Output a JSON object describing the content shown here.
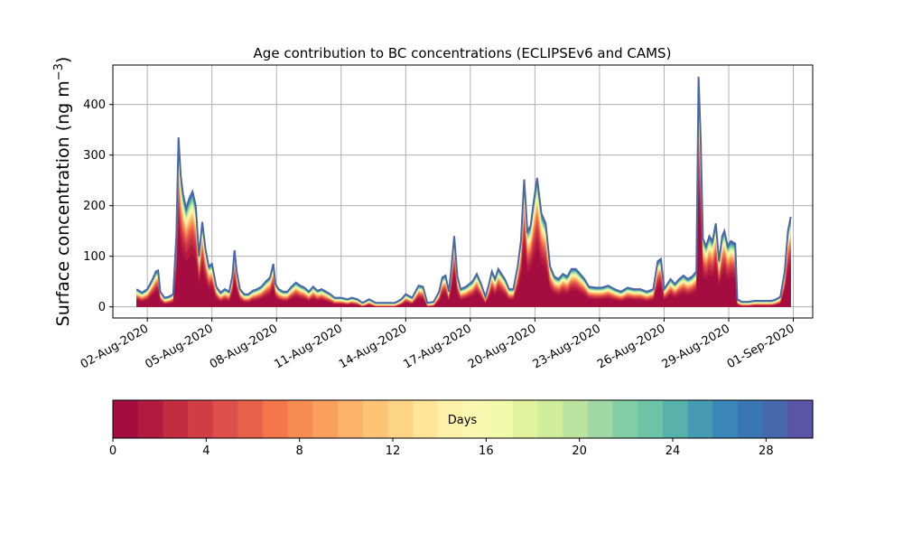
{
  "chart_data": {
    "type": "area",
    "title": "Age contribution to BC concentrations (ECLIPSEv6 and CAMS)",
    "ylabel_main": "Surface concentration (ng m",
    "ylabel_sup": "−3",
    "ylabel_close": ")",
    "xlabel": "",
    "ylim": [
      -22,
      478
    ],
    "yticks": [
      0,
      100,
      200,
      300,
      400
    ],
    "x_start": "01-Aug-2020",
    "xticks": [
      "02-Aug-2020",
      "05-Aug-2020",
      "08-Aug-2020",
      "11-Aug-2020",
      "14-Aug-2020",
      "17-Aug-2020",
      "20-Aug-2020",
      "23-Aug-2020",
      "26-Aug-2020",
      "29-Aug-2020",
      "01-Sep-2020"
    ],
    "grid": true,
    "total_line_color": "#4a67a8",
    "total_series": [
      [
        1.5,
        35
      ],
      [
        1.75,
        28
      ],
      [
        2.0,
        35
      ],
      [
        2.25,
        55
      ],
      [
        2.4,
        70
      ],
      [
        2.5,
        72
      ],
      [
        2.6,
        30
      ],
      [
        2.8,
        18
      ],
      [
        3.0,
        20
      ],
      [
        3.2,
        25
      ],
      [
        3.35,
        140
      ],
      [
        3.45,
        335
      ],
      [
        3.55,
        260
      ],
      [
        3.65,
        225
      ],
      [
        3.8,
        195
      ],
      [
        3.95,
        215
      ],
      [
        4.1,
        228
      ],
      [
        4.25,
        200
      ],
      [
        4.4,
        100
      ],
      [
        4.55,
        168
      ],
      [
        4.7,
        115
      ],
      [
        4.85,
        80
      ],
      [
        5.0,
        85
      ],
      [
        5.2,
        40
      ],
      [
        5.4,
        28
      ],
      [
        5.6,
        35
      ],
      [
        5.8,
        30
      ],
      [
        5.95,
        60
      ],
      [
        6.05,
        112
      ],
      [
        6.15,
        70
      ],
      [
        6.3,
        35
      ],
      [
        6.5,
        25
      ],
      [
        6.7,
        25
      ],
      [
        6.9,
        32
      ],
      [
        7.1,
        35
      ],
      [
        7.3,
        40
      ],
      [
        7.5,
        50
      ],
      [
        7.7,
        58
      ],
      [
        7.85,
        85
      ],
      [
        7.95,
        45
      ],
      [
        8.1,
        35
      ],
      [
        8.3,
        30
      ],
      [
        8.5,
        30
      ],
      [
        8.7,
        40
      ],
      [
        8.9,
        48
      ],
      [
        9.1,
        42
      ],
      [
        9.3,
        38
      ],
      [
        9.5,
        30
      ],
      [
        9.7,
        40
      ],
      [
        9.9,
        32
      ],
      [
        10.1,
        35
      ],
      [
        10.3,
        30
      ],
      [
        10.5,
        25
      ],
      [
        10.7,
        18
      ],
      [
        11.0,
        18
      ],
      [
        11.3,
        15
      ],
      [
        11.5,
        18
      ],
      [
        11.75,
        15
      ],
      [
        12.0,
        8
      ],
      [
        12.3,
        15
      ],
      [
        12.6,
        8
      ],
      [
        13.0,
        8
      ],
      [
        13.5,
        8
      ],
      [
        13.8,
        15
      ],
      [
        14.0,
        25
      ],
      [
        14.3,
        18
      ],
      [
        14.6,
        42
      ],
      [
        14.8,
        40
      ],
      [
        15.0,
        8
      ],
      [
        15.3,
        10
      ],
      [
        15.55,
        30
      ],
      [
        15.7,
        58
      ],
      [
        15.85,
        62
      ],
      [
        16.0,
        30
      ],
      [
        16.1,
        68
      ],
      [
        16.25,
        140
      ],
      [
        16.4,
        60
      ],
      [
        16.55,
        35
      ],
      [
        16.8,
        40
      ],
      [
        17.1,
        50
      ],
      [
        17.3,
        65
      ],
      [
        17.5,
        45
      ],
      [
        17.7,
        20
      ],
      [
        17.85,
        42
      ],
      [
        18.0,
        70
      ],
      [
        18.15,
        55
      ],
      [
        18.3,
        75
      ],
      [
        18.45,
        65
      ],
      [
        18.6,
        55
      ],
      [
        18.8,
        35
      ],
      [
        19.0,
        35
      ],
      [
        19.2,
        80
      ],
      [
        19.35,
        130
      ],
      [
        19.5,
        252
      ],
      [
        19.65,
        150
      ],
      [
        19.8,
        160
      ],
      [
        19.95,
        210
      ],
      [
        20.1,
        255
      ],
      [
        20.3,
        185
      ],
      [
        20.5,
        165
      ],
      [
        20.7,
        80
      ],
      [
        20.9,
        60
      ],
      [
        21.1,
        55
      ],
      [
        21.3,
        65
      ],
      [
        21.5,
        60
      ],
      [
        21.7,
        75
      ],
      [
        21.9,
        75
      ],
      [
        22.1,
        65
      ],
      [
        22.3,
        55
      ],
      [
        22.5,
        40
      ],
      [
        22.8,
        38
      ],
      [
        23.1,
        38
      ],
      [
        23.4,
        42
      ],
      [
        23.7,
        35
      ],
      [
        24.0,
        30
      ],
      [
        24.3,
        38
      ],
      [
        24.6,
        35
      ],
      [
        24.9,
        35
      ],
      [
        25.2,
        30
      ],
      [
        25.5,
        35
      ],
      [
        25.7,
        90
      ],
      [
        25.85,
        95
      ],
      [
        26.0,
        35
      ],
      [
        26.3,
        55
      ],
      [
        26.5,
        45
      ],
      [
        26.7,
        55
      ],
      [
        26.9,
        62
      ],
      [
        27.1,
        55
      ],
      [
        27.3,
        60
      ],
      [
        27.5,
        70
      ],
      [
        27.6,
        455
      ],
      [
        27.7,
        330
      ],
      [
        27.8,
        135
      ],
      [
        27.95,
        120
      ],
      [
        28.1,
        140
      ],
      [
        28.25,
        130
      ],
      [
        28.4,
        165
      ],
      [
        28.55,
        90
      ],
      [
        28.7,
        140
      ],
      [
        28.8,
        150
      ],
      [
        28.95,
        120
      ],
      [
        29.1,
        130
      ],
      [
        29.3,
        125
      ],
      [
        29.4,
        15
      ],
      [
        29.6,
        10
      ],
      [
        29.9,
        10
      ],
      [
        30.2,
        12
      ],
      [
        30.5,
        12
      ],
      [
        30.8,
        12
      ],
      [
        31.0,
        12
      ],
      [
        31.2,
        15
      ],
      [
        31.4,
        20
      ],
      [
        31.6,
        70
      ],
      [
        31.75,
        150
      ],
      [
        31.88,
        178
      ]
    ],
    "colorbar": {
      "label": "Days",
      "range": [
        0,
        30
      ],
      "ticks": [
        0,
        4,
        8,
        12,
        16,
        20,
        24,
        28
      ],
      "colors": [
        "#a50c3f",
        "#b4193f",
        "#c42c42",
        "#d23c46",
        "#dd4f4b",
        "#e8614a",
        "#f4764a",
        "#f78c53",
        "#f9a05e",
        "#fcb26b",
        "#fdc478",
        "#fdd486",
        "#fee597",
        "#fef1a9",
        "#faf7b0",
        "#f1f9ab",
        "#e2f39e",
        "#d0ec9d",
        "#b9e39f",
        "#9fd8a4",
        "#83cda5",
        "#6cc3a5",
        "#58b2ab",
        "#469bb2",
        "#3a86b8",
        "#3a75b4",
        "#4767ac",
        "#5a55a5"
      ]
    }
  }
}
